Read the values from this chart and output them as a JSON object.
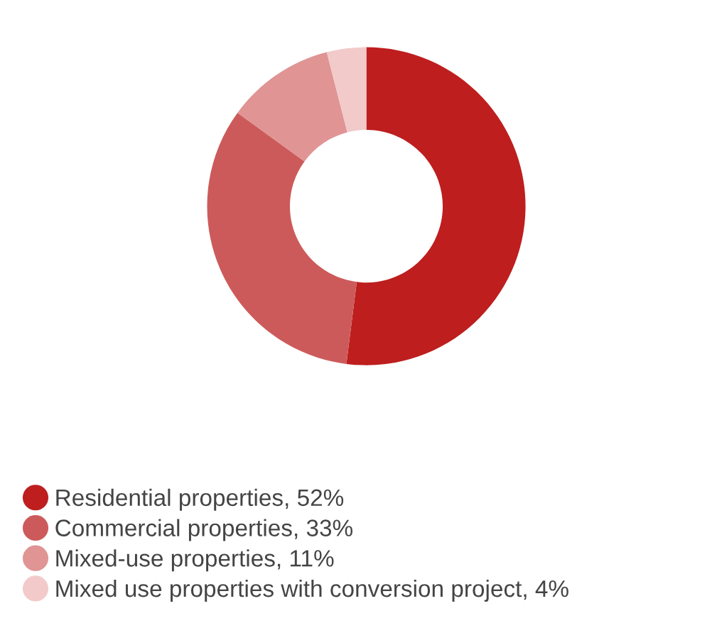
{
  "chart_data": {
    "type": "donut",
    "categories": [
      "Residential properties",
      "Commercial properties",
      "Mixed-use properties",
      "Mixed use properties with conversion project"
    ],
    "values": [
      52,
      33,
      11,
      4
    ],
    "value_labels": [
      "52%",
      "33%",
      "11%",
      "4%"
    ],
    "colors": [
      "#be1e1e",
      "#cd5a5a",
      "#e09494",
      "#f2caca"
    ],
    "legend": "bottom left"
  }
}
